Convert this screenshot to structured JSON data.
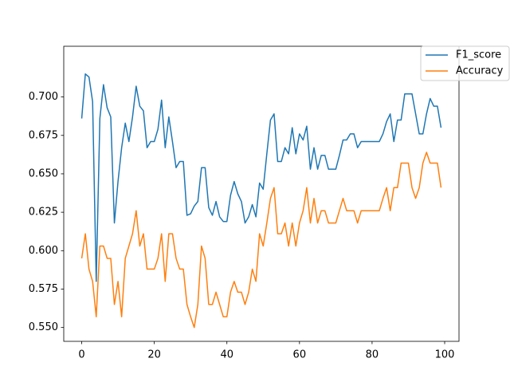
{
  "chart_data": {
    "type": "line",
    "x": [
      0,
      1,
      2,
      3,
      4,
      5,
      6,
      7,
      8,
      9,
      10,
      11,
      12,
      13,
      14,
      15,
      16,
      17,
      18,
      19,
      20,
      21,
      22,
      23,
      24,
      25,
      26,
      27,
      28,
      29,
      30,
      31,
      32,
      33,
      34,
      35,
      36,
      37,
      38,
      39,
      40,
      41,
      42,
      43,
      44,
      45,
      46,
      47,
      48,
      49,
      50,
      51,
      52,
      53,
      54,
      55,
      56,
      57,
      58,
      59,
      60,
      61,
      62,
      63,
      64,
      65,
      66,
      67,
      68,
      69,
      70,
      71,
      72,
      73,
      74,
      75,
      76,
      77,
      78,
      79,
      80,
      81,
      82,
      83,
      84,
      85,
      86,
      87,
      88,
      89,
      90,
      91,
      92,
      93,
      94,
      95,
      96,
      97,
      98,
      99
    ],
    "series": [
      {
        "name": "F1_score",
        "color": "#1f77b4",
        "values": [
          0.686,
          0.715,
          0.713,
          0.697,
          0.58,
          0.686,
          0.708,
          0.693,
          0.687,
          0.618,
          0.645,
          0.667,
          0.683,
          0.671,
          0.687,
          0.707,
          0.694,
          0.691,
          0.667,
          0.671,
          0.671,
          0.679,
          0.698,
          0.667,
          0.687,
          0.671,
          0.654,
          0.658,
          0.658,
          0.623,
          0.624,
          0.629,
          0.632,
          0.654,
          0.654,
          0.628,
          0.623,
          0.632,
          0.622,
          0.619,
          0.619,
          0.636,
          0.645,
          0.637,
          0.632,
          0.618,
          0.622,
          0.63,
          0.622,
          0.644,
          0.64,
          0.663,
          0.685,
          0.689,
          0.658,
          0.658,
          0.667,
          0.663,
          0.68,
          0.663,
          0.676,
          0.672,
          0.681,
          0.653,
          0.667,
          0.653,
          0.662,
          0.662,
          0.653,
          0.653,
          0.653,
          0.662,
          0.672,
          0.672,
          0.676,
          0.676,
          0.667,
          0.671,
          0.671,
          0.671,
          0.671,
          0.671,
          0.671,
          0.676,
          0.684,
          0.689,
          0.671,
          0.685,
          0.685,
          0.702,
          0.702,
          0.702,
          0.689,
          0.676,
          0.676,
          0.689,
          0.699,
          0.694,
          0.694,
          0.68
        ]
      },
      {
        "name": "Accuracy",
        "color": "#ff7f0e",
        "values": [
          0.595,
          0.611,
          0.588,
          0.58,
          0.557,
          0.603,
          0.603,
          0.595,
          0.595,
          0.565,
          0.58,
          0.557,
          0.595,
          0.603,
          0.611,
          0.626,
          0.603,
          0.611,
          0.588,
          0.588,
          0.588,
          0.595,
          0.611,
          0.58,
          0.611,
          0.611,
          0.595,
          0.588,
          0.588,
          0.565,
          0.557,
          0.55,
          0.565,
          0.603,
          0.595,
          0.565,
          0.565,
          0.573,
          0.565,
          0.557,
          0.557,
          0.573,
          0.58,
          0.573,
          0.573,
          0.565,
          0.573,
          0.588,
          0.58,
          0.611,
          0.603,
          0.618,
          0.634,
          0.641,
          0.611,
          0.611,
          0.618,
          0.603,
          0.618,
          0.603,
          0.618,
          0.626,
          0.641,
          0.618,
          0.634,
          0.618,
          0.626,
          0.626,
          0.618,
          0.618,
          0.618,
          0.626,
          0.634,
          0.626,
          0.626,
          0.626,
          0.618,
          0.626,
          0.626,
          0.626,
          0.626,
          0.626,
          0.626,
          0.634,
          0.641,
          0.626,
          0.641,
          0.641,
          0.657,
          0.657,
          0.657,
          0.641,
          0.634,
          0.641,
          0.657,
          0.664,
          0.657,
          0.657,
          0.657,
          0.641
        ]
      }
    ],
    "xlim": [
      -4.95,
      103.95
    ],
    "ylim": [
      0.541,
      0.733
    ],
    "xticks": [
      0,
      20,
      40,
      60,
      80,
      100
    ],
    "yticks": [
      {
        "value": 0.55,
        "label": "0.550"
      },
      {
        "value": 0.575,
        "label": "0.575"
      },
      {
        "value": 0.6,
        "label": "0.600"
      },
      {
        "value": 0.625,
        "label": "0.625"
      },
      {
        "value": 0.65,
        "label": "0.650"
      },
      {
        "value": 0.675,
        "label": "0.675"
      },
      {
        "value": 0.7,
        "label": "0.700"
      }
    ],
    "legend": "upper right"
  }
}
